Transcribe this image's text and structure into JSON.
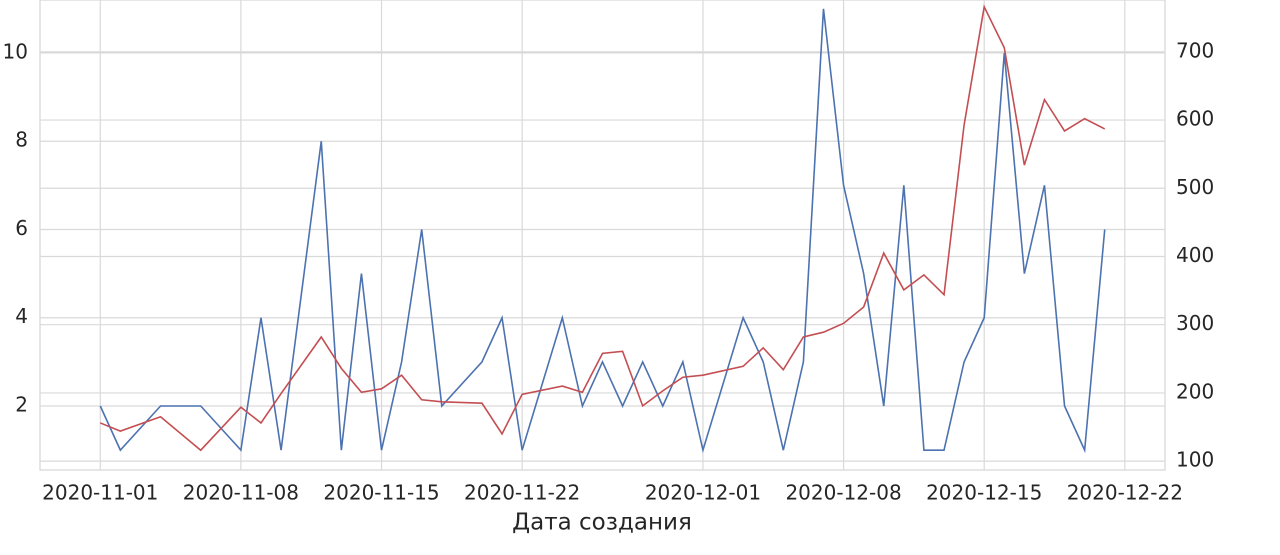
{
  "chart_data": {
    "type": "line",
    "x_label": "Дата создания",
    "x": [
      "2020-11-01",
      "2020-11-02",
      "2020-11-04",
      "2020-11-06",
      "2020-11-08",
      "2020-11-09",
      "2020-11-10",
      "2020-11-12",
      "2020-11-13",
      "2020-11-14",
      "2020-11-15",
      "2020-11-16",
      "2020-11-17",
      "2020-11-18",
      "2020-11-20",
      "2020-11-21",
      "2020-11-22",
      "2020-11-24",
      "2020-11-25",
      "2020-11-26",
      "2020-11-27",
      "2020-11-28",
      "2020-11-29",
      "2020-11-30",
      "2020-12-01",
      "2020-12-03",
      "2020-12-04",
      "2020-12-05",
      "2020-12-06",
      "2020-12-07",
      "2020-12-08",
      "2020-12-09",
      "2020-12-10",
      "2020-12-11",
      "2020-12-12",
      "2020-12-13",
      "2020-12-14",
      "2020-12-15",
      "2020-12-16",
      "2020-12-17",
      "2020-12-18",
      "2020-12-19",
      "2020-12-20",
      "2020-12-21"
    ],
    "series": [
      {
        "color": "#4c72b0",
        "values": [
          2,
          1,
          2,
          2,
          1,
          4,
          1,
          8,
          1,
          5,
          1,
          3,
          6,
          2,
          3,
          4,
          1,
          4,
          2,
          3,
          2,
          3,
          2,
          3,
          1,
          4,
          3,
          1,
          3,
          11,
          7,
          5,
          2,
          7,
          1,
          1,
          3,
          4,
          10,
          5,
          7,
          2,
          1,
          6
        ]
      },
      {
        "color": "#c44e52",
        "axis": "y2",
        "values": [
          156,
          144,
          165,
          116,
          179,
          156,
          199,
          282,
          236,
          201,
          206,
          226,
          190,
          187,
          185,
          140,
          198,
          210,
          201,
          258,
          261,
          181,
          203,
          223,
          226,
          239,
          266,
          234,
          282,
          289,
          302,
          326,
          405,
          351,
          373,
          344,
          593,
          766,
          706,
          534,
          630,
          584,
          602,
          587
        ]
      }
    ],
    "xlim": [
      "2020-10-29",
      "2020-12-24"
    ],
    "xticks": [
      "2020-11-01",
      "2020-11-08",
      "2020-11-15",
      "2020-11-22",
      "2020-12-01",
      "2020-12-08",
      "2020-12-15",
      "2020-12-22"
    ],
    "ylim": [
      0.55,
      11.2
    ],
    "yticks": [
      2,
      4,
      6,
      8,
      10
    ],
    "y2lim": [
      87,
      776
    ],
    "y2ticks": [
      100,
      200,
      300,
      400,
      500,
      600,
      700
    ],
    "grid": true
  }
}
